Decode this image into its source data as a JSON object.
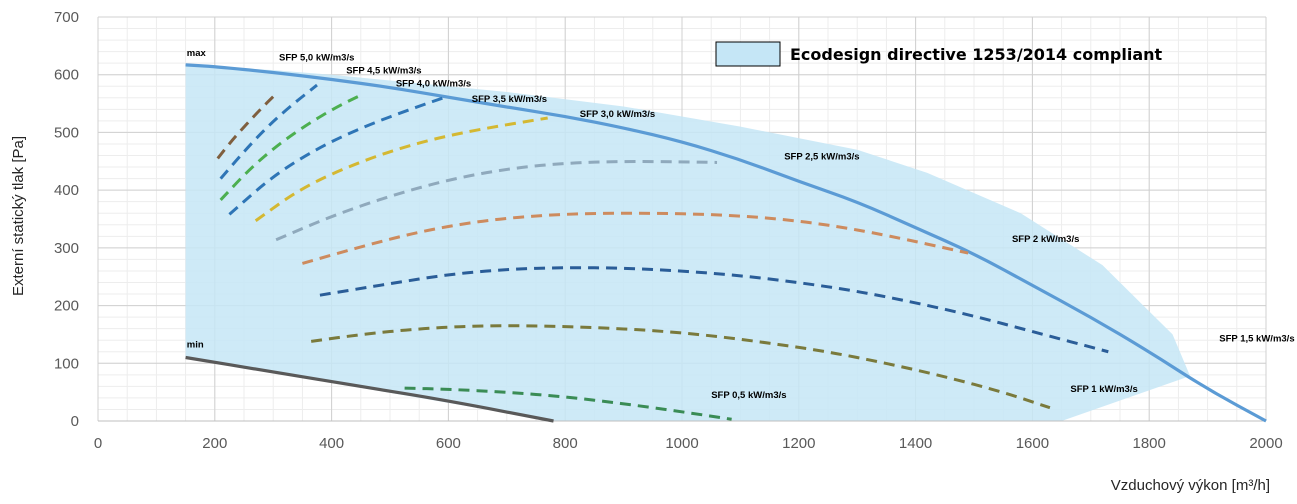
{
  "chart_data": {
    "type": "line",
    "xlabel": "Vzduchový výkon [m³/h]",
    "ylabel": "Externí statický tlak [Pa]",
    "xlim": [
      0,
      2000
    ],
    "ylim": [
      0,
      700
    ],
    "x_ticks": [
      "0",
      "200",
      "400",
      "600",
      "800",
      "1000",
      "1200",
      "1400",
      "1600",
      "1800",
      "2000"
    ],
    "y_ticks": [
      "0",
      "100",
      "200",
      "300",
      "400",
      "500",
      "600",
      "700"
    ],
    "grid": true,
    "legend": {
      "label": "Ecodesign directive 1253/2014 compliant",
      "position": "top-right",
      "color": "#c5e6f6"
    },
    "region": {
      "name": "Ecodesign directive 1253/2014 compliant",
      "color": "#c5e6f6",
      "points": [
        [
          150,
          617
        ],
        [
          150,
          110
        ],
        [
          780,
          0
        ],
        [
          1650,
          0
        ],
        [
          1870,
          78
        ],
        [
          1840,
          150
        ],
        [
          1720,
          270
        ],
        [
          1580,
          360
        ],
        [
          1420,
          430
        ],
        [
          1300,
          470
        ],
        [
          1100,
          510
        ],
        [
          900,
          545
        ],
        [
          700,
          570
        ],
        [
          500,
          590
        ],
        [
          400,
          600
        ],
        [
          300,
          608
        ],
        [
          150,
          617
        ]
      ]
    },
    "series": [
      {
        "name": "max",
        "color": "#5b9bd5",
        "style": "solid",
        "x": [
          150,
          200,
          300,
          400,
          500,
          600,
          700,
          800,
          900,
          1000,
          1100,
          1200,
          1300,
          1400,
          1500,
          1600,
          1700,
          1800,
          1900,
          2000
        ],
        "y": [
          617,
          614,
          604,
          592,
          578,
          561,
          544,
          528,
          508,
          484,
          453,
          415,
          380,
          335,
          290,
          235,
          180,
          120,
          55,
          0
        ]
      },
      {
        "name": "min",
        "color": "#595959",
        "style": "solid",
        "x": [
          150,
          300,
          450,
          600,
          780
        ],
        "y": [
          110,
          85,
          60,
          35,
          0
        ]
      },
      {
        "name": "SFP 5,0 kW/m3/s",
        "color": "#7f5f3f",
        "style": "dashed",
        "x": [
          205,
          230,
          255,
          280,
          305
        ],
        "y": [
          455,
          487,
          515,
          542,
          567
        ]
      },
      {
        "name": "SFP 4,5 kW/m3/s",
        "color": "#2e75b6",
        "style": "dashed",
        "x": [
          210,
          250,
          290,
          330,
          375
        ],
        "y": [
          420,
          467,
          510,
          546,
          582
        ]
      },
      {
        "name": "SFP 4,0 kW/m3/s",
        "color": "#4caf50",
        "style": "dashed",
        "x": [
          210,
          260,
          310,
          360,
          410,
          455
        ],
        "y": [
          383,
          437,
          480,
          515,
          545,
          567
        ]
      },
      {
        "name": "SFP 3,5 kW/m3/s",
        "color": "#2e75b6",
        "style": "dashed",
        "x": [
          225,
          300,
          380,
          460,
          540,
          600
        ],
        "y": [
          358,
          425,
          475,
          512,
          542,
          563
        ]
      },
      {
        "name": "SFP 3,0 kW/m3/s",
        "color": "#d4b832",
        "style": "dashed",
        "x": [
          270,
          350,
          450,
          550,
          650,
          770
        ],
        "y": [
          347,
          405,
          450,
          483,
          505,
          525
        ]
      },
      {
        "name": "SFP 2,5 kW/m3/s",
        "color": "#8fa9bc",
        "style": "dashed",
        "x": [
          305,
          400,
          500,
          600,
          700,
          800,
          900,
          1000,
          1060
        ],
        "y": [
          314,
          355,
          390,
          418,
          437,
          447,
          450,
          449,
          448
        ]
      },
      {
        "name": "SFP 2 kW/m3/s",
        "color": "#cd8b5e",
        "style": "dashed",
        "x": [
          350,
          450,
          550,
          650,
          750,
          850,
          950,
          1050,
          1150,
          1250,
          1350,
          1490
        ],
        "y": [
          273,
          302,
          328,
          346,
          356,
          360,
          360,
          358,
          352,
          340,
          322,
          291
        ]
      },
      {
        "name": "SFP 1,5 kW/m3/s",
        "color": "#2a5d98",
        "style": "dashed",
        "x": [
          380,
          500,
          600,
          700,
          800,
          900,
          1000,
          1100,
          1200,
          1300,
          1400,
          1500,
          1600,
          1730
        ],
        "y": [
          218,
          238,
          254,
          263,
          266,
          265,
          260,
          252,
          240,
          225,
          205,
          182,
          155,
          120
        ]
      },
      {
        "name": "SFP 1 kW/m3/s",
        "color": "#7a7a3c",
        "style": "dashed",
        "x": [
          365,
          450,
          550,
          650,
          750,
          850,
          950,
          1050,
          1150,
          1250,
          1350,
          1450,
          1550,
          1630
        ],
        "y": [
          138,
          150,
          160,
          165,
          165,
          162,
          157,
          148,
          135,
          120,
          100,
          77,
          50,
          23
        ]
      },
      {
        "name": "SFP 0,5 kW/m3/s",
        "color": "#3a8c55",
        "style": "dashed",
        "x": [
          525,
          600,
          700,
          800,
          900,
          1000,
          1085
        ],
        "y": [
          57,
          55,
          50,
          42,
          30,
          16,
          3
        ]
      }
    ],
    "annotations": [
      {
        "text": "max",
        "x": 152,
        "y": 632
      },
      {
        "text": "min",
        "x": 152,
        "y": 127
      },
      {
        "text": "SFP 5,0 kW/m3/s",
        "x": 310,
        "y": 625
      },
      {
        "text": "SFP 4,5 kW/m3/s",
        "x": 425,
        "y": 602
      },
      {
        "text": "SFP 4,0 kW/m3/s",
        "x": 510,
        "y": 580
      },
      {
        "text": "SFP 3,5 kW/m3/s",
        "x": 640,
        "y": 553
      },
      {
        "text": "SFP 3,0 kW/m3/s",
        "x": 825,
        "y": 527
      },
      {
        "text": "SFP 2,5 kW/m3/s",
        "x": 1175,
        "y": 453
      },
      {
        "text": "SFP 2 kW/m3/s",
        "x": 1565,
        "y": 310
      },
      {
        "text": "SFP 1,5 kW/m3/s",
        "x": 1920,
        "y": 138
      },
      {
        "text": "SFP 1 kW/m3/s",
        "x": 1665,
        "y": 50
      },
      {
        "text": "SFP 0,5 kW/m3/s",
        "x": 1050,
        "y": 40
      }
    ]
  }
}
